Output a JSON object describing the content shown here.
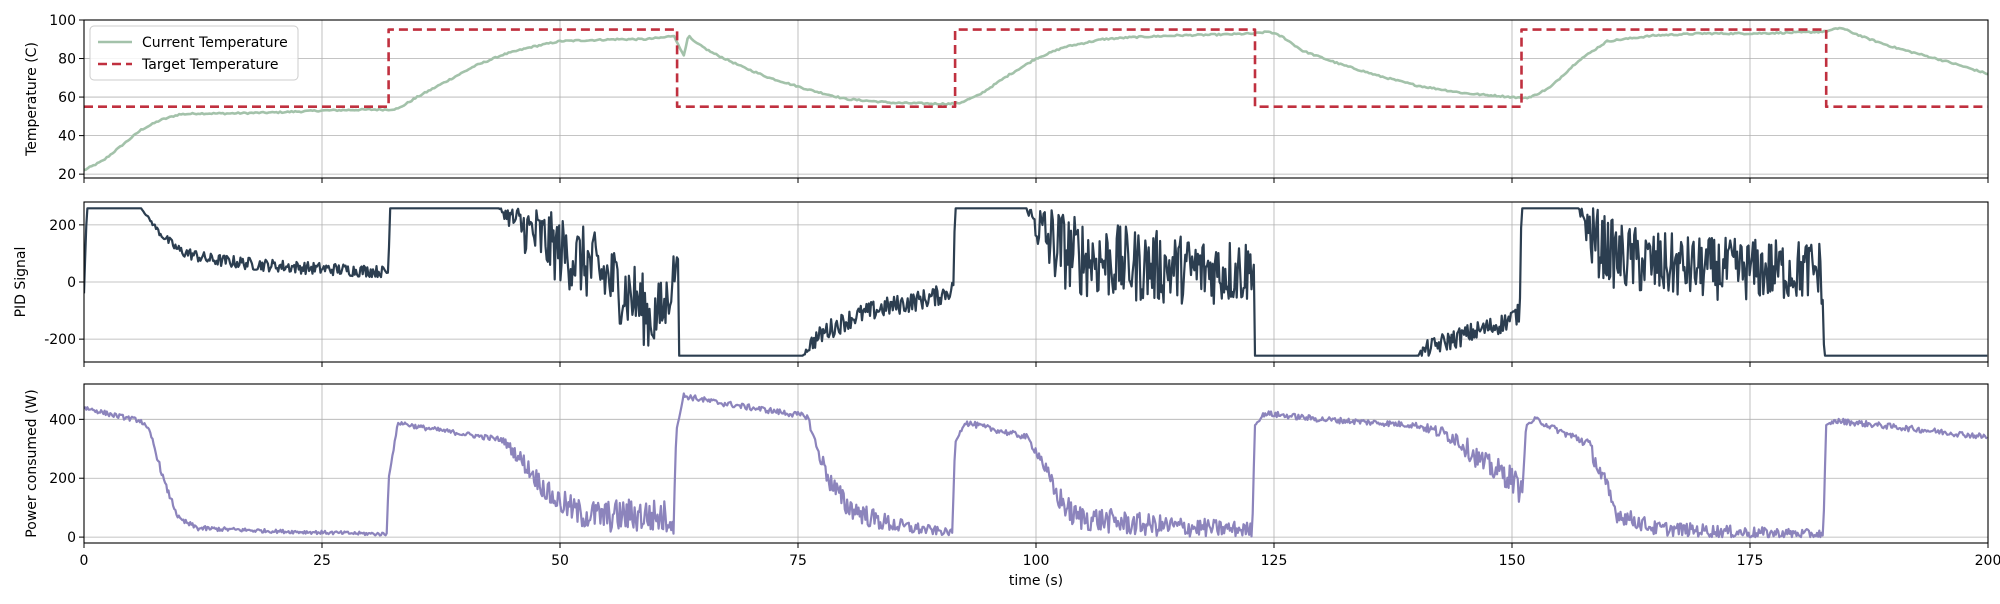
{
  "chart_data": [
    {
      "type": "line",
      "panel": "temperature",
      "ylabel": "Temperature (C)",
      "xlim": [
        0,
        200
      ],
      "ylim": [
        18,
        100
      ],
      "yticks": [
        20,
        40,
        60,
        80,
        100
      ],
      "xticks": [
        0,
        25,
        50,
        75,
        100,
        125,
        150,
        175,
        200
      ],
      "grid": true,
      "legend_position": "top-left",
      "series": [
        {
          "name": "Current Temperature",
          "color": "#a3c2aa",
          "style": "solid",
          "x": [
            0,
            2,
            4,
            6,
            8,
            10,
            12,
            15,
            20,
            25,
            30,
            32,
            33,
            35,
            38,
            41,
            44,
            47,
            50,
            53,
            56,
            59,
            61,
            62,
            62.5,
            63,
            63.5,
            64,
            66,
            69,
            72,
            76,
            80,
            85,
            90,
            91,
            92,
            94,
            97,
            100,
            103,
            107,
            110,
            115,
            120,
            123,
            124.5,
            126,
            128,
            132,
            136,
            140,
            145,
            150,
            151,
            152,
            154,
            157,
            160,
            165,
            170,
            175,
            180,
            183,
            184.5,
            187,
            190,
            193,
            196,
            200
          ],
          "y": [
            22,
            27,
            35,
            43,
            48,
            51,
            51.5,
            51.5,
            52,
            53,
            53.5,
            53.5,
            54,
            60,
            68,
            76,
            82,
            86,
            89,
            89.5,
            90,
            90,
            91,
            92,
            86,
            82,
            92,
            89,
            83,
            76,
            70,
            64,
            59,
            57,
            56.5,
            56.5,
            57,
            61,
            71,
            80,
            86,
            90,
            91,
            92,
            92.5,
            93,
            94,
            91,
            84,
            77,
            71,
            66,
            62,
            60,
            59.5,
            60,
            65,
            79,
            89,
            92,
            93,
            93,
            93.5,
            94,
            96,
            91,
            86,
            82,
            78,
            72
          ]
        },
        {
          "name": "Target Temperature",
          "color": "#c0303f",
          "style": "dashed",
          "x": [
            0,
            32,
            32,
            62.3,
            62.3,
            91.5,
            91.5,
            123,
            123,
            151,
            151,
            183,
            183,
            200
          ],
          "y": [
            55,
            55,
            95,
            95,
            55,
            55,
            95,
            95,
            55,
            55,
            95,
            95,
            55,
            55
          ]
        }
      ]
    },
    {
      "type": "line",
      "panel": "pid",
      "ylabel": "PID Signal",
      "xlim": [
        0,
        200
      ],
      "ylim": [
        -280,
        280
      ],
      "yticks": [
        -200,
        0,
        200
      ],
      "grid": true,
      "series": [
        {
          "name": "",
          "color": "#2c3e50",
          "x": [
            0,
            0.3,
            6,
            8,
            10,
            13,
            18,
            24,
            29,
            32,
            32.1,
            43.5,
            47,
            50,
            53,
            56,
            58,
            59.5,
            61,
            62,
            62.4,
            62.5,
            75.5,
            76.5,
            78,
            81,
            84,
            87,
            90,
            91.3,
            91.5,
            99,
            101,
            104,
            107,
            110,
            113,
            116,
            119,
            122.5,
            122.9,
            123,
            140,
            141,
            143,
            146,
            149,
            150.8,
            151,
            157,
            158.5,
            161,
            165,
            169,
            173,
            177,
            180,
            182.5,
            182.8,
            183,
            200
          ],
          "y": [
            -40,
            258,
            258,
            170,
            110,
            80,
            62,
            48,
            40,
            35,
            258,
            258,
            170,
            110,
            60,
            -10,
            -60,
            -130,
            -95,
            40,
            80,
            -258,
            -258,
            -210,
            -170,
            -120,
            -90,
            -70,
            -45,
            -25,
            258,
            258,
            150,
            95,
            75,
            60,
            50,
            45,
            40,
            40,
            60,
            -258,
            -258,
            -235,
            -210,
            -175,
            -145,
            -110,
            258,
            258,
            150,
            90,
            60,
            50,
            45,
            42,
            42,
            40,
            -258,
            -258,
            -258
          ],
          "noise": [
            0,
            0,
            0,
            12,
            20,
            22,
            22,
            22,
            22,
            20,
            0,
            0,
            110,
            120,
            130,
            130,
            130,
            120,
            110,
            80,
            0,
            0,
            0,
            30,
            35,
            35,
            35,
            35,
            35,
            30,
            0,
            0,
            140,
            140,
            140,
            130,
            130,
            120,
            120,
            120,
            0,
            0,
            0,
            30,
            35,
            35,
            35,
            35,
            0,
            0,
            120,
            120,
            120,
            110,
            110,
            110,
            110,
            110,
            0,
            0,
            0
          ]
        }
      ]
    },
    {
      "type": "line",
      "panel": "power",
      "ylabel": "Power consumed (W)",
      "xlabel": "time (s)",
      "xlim": [
        0,
        200
      ],
      "ylim": [
        -20,
        520
      ],
      "yticks": [
        0,
        200,
        400
      ],
      "xticks": [
        0,
        25,
        50,
        75,
        100,
        125,
        150,
        175,
        200
      ],
      "grid": true,
      "series": [
        {
          "name": "",
          "color": "#8c84bc",
          "x": [
            0,
            3,
            6,
            7,
            8.5,
            10,
            12,
            20,
            31.8,
            32,
            33,
            35,
            40,
            44,
            46,
            49,
            52,
            55,
            58,
            62,
            62.2,
            63,
            66,
            70,
            76,
            77,
            78.5,
            80,
            83,
            86,
            91.2,
            91.5,
            92.5,
            95,
            99,
            100.5,
            102,
            104,
            110,
            115,
            122.7,
            123,
            124,
            130,
            140,
            144,
            147,
            150,
            151,
            151.5,
            152.5,
            155,
            158,
            159.5,
            161,
            165,
            175,
            182.7,
            183,
            184,
            190,
            200
          ],
          "y": [
            440,
            415,
            395,
            350,
            180,
            60,
            30,
            20,
            10,
            200,
            390,
            375,
            350,
            330,
            260,
            140,
            80,
            70,
            75,
            65,
            360,
            480,
            460,
            440,
            410,
            300,
            180,
            110,
            60,
            35,
            15,
            320,
            390,
            370,
            340,
            270,
            150,
            70,
            45,
            35,
            25,
            380,
            420,
            400,
            380,
            340,
            250,
            200,
            150,
            380,
            400,
            360,
            320,
            200,
            80,
            30,
            15,
            10,
            380,
            395,
            375,
            340
          ],
          "noise": [
            8,
            8,
            8,
            10,
            10,
            10,
            8,
            6,
            6,
            0,
            8,
            8,
            8,
            10,
            30,
            40,
            50,
            55,
            60,
            60,
            0,
            10,
            10,
            10,
            10,
            20,
            40,
            40,
            35,
            25,
            10,
            0,
            10,
            10,
            10,
            20,
            40,
            45,
            40,
            35,
            25,
            0,
            10,
            10,
            10,
            30,
            40,
            45,
            45,
            0,
            10,
            10,
            20,
            40,
            30,
            25,
            20,
            15,
            0,
            10,
            10,
            10
          ]
        }
      ]
    }
  ]
}
